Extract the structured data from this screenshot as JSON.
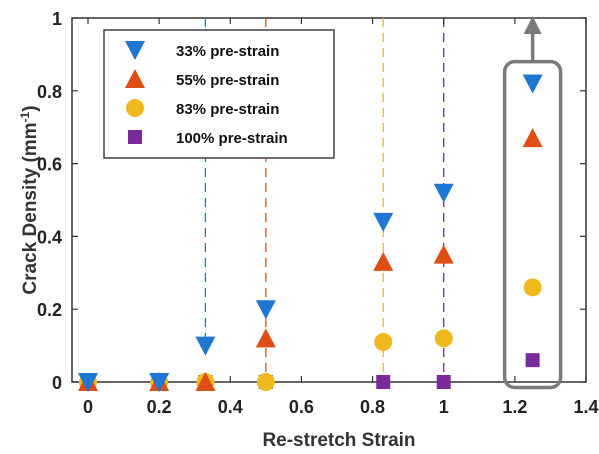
{
  "chart_data": {
    "type": "scatter",
    "xlabel": "Re-stretch Strain",
    "ylabel_main": "Crack Density (mm",
    "ylabel_sup": "-1",
    "ylabel_end": ")",
    "xlim": [
      0,
      1.4
    ],
    "ylim": [
      0,
      1
    ],
    "xticks": [
      "0",
      "0.2",
      "0.4",
      "0.6",
      "0.8",
      "1",
      "1.2",
      "1.4"
    ],
    "yticks": [
      "0",
      "0.2",
      "0.4",
      "0.6",
      "0.8",
      "1"
    ],
    "legend_position": "top-left",
    "grid": false,
    "series": [
      {
        "name": "33% pre-strain",
        "marker": "triangle-down",
        "color": "#1f77d4",
        "x": [
          0,
          0.2,
          0.33,
          0.5,
          0.83,
          1.0,
          1.25
        ],
        "y": [
          0,
          0,
          0.1,
          0.2,
          0.44,
          0.52,
          0.82
        ]
      },
      {
        "name": "55% pre-strain",
        "marker": "triangle-up",
        "color": "#de4f15",
        "x": [
          0,
          0.2,
          0.33,
          0.5,
          0.83,
          1.0,
          1.25
        ],
        "y": [
          0,
          0,
          0,
          0.12,
          0.33,
          0.35,
          0.67
        ]
      },
      {
        "name": "83% pre-strain",
        "marker": "circle",
        "color": "#f0b81c",
        "x": [
          0,
          0.2,
          0.33,
          0.5,
          0.83,
          1.0,
          1.25
        ],
        "y": [
          0,
          0,
          0,
          0,
          0.11,
          0.12,
          0.26
        ]
      },
      {
        "name": "100% pre-strain",
        "marker": "square",
        "color": "#7a2a9a",
        "x": [
          0,
          0.2,
          0.33,
          0.5,
          0.83,
          1.0,
          1.25
        ],
        "y": [
          0,
          0,
          0,
          0,
          0,
          0,
          0.06
        ]
      }
    ],
    "dashed_lines": [
      {
        "x": 0.33,
        "color": "#1f77d4",
        "y_to": 0.1
      },
      {
        "x": 0.5,
        "color": "#de4f15",
        "y_to": 0
      },
      {
        "x": 0.83,
        "color": "#f0b81c",
        "y_to": 0
      },
      {
        "x": 1.0,
        "color": "#7a2a9a",
        "y_to": 0
      }
    ],
    "highlight_box": {
      "x": 1.25,
      "color": "#7a7a7a"
    }
  }
}
